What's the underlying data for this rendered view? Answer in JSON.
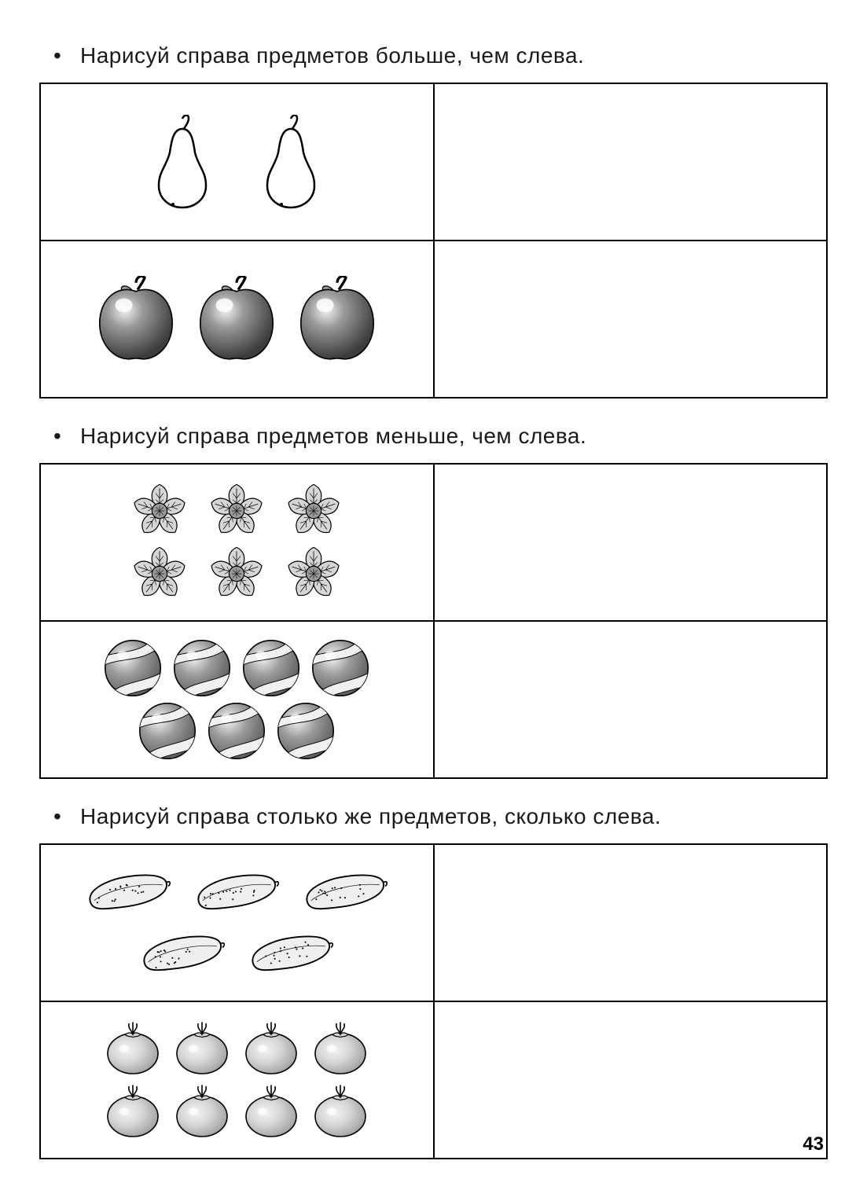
{
  "page_number": "43",
  "stroke_color": "#000000",
  "bg_color": "#ffffff",
  "sections": [
    {
      "instruction": "Нарисуй справа предметов больше, чем слева.",
      "rows": [
        {
          "icon": "pear",
          "count": 2,
          "row_layout": [
            2
          ],
          "cell_class": "tall",
          "size": 120
        },
        {
          "icon": "apple",
          "count": 3,
          "row_layout": [
            3
          ],
          "cell_class": "tall",
          "size": 110
        }
      ]
    },
    {
      "instruction": "Нарисуй справа предметов меньше, чем слева.",
      "rows": [
        {
          "icon": "flower",
          "count": 6,
          "row_layout": [
            3,
            3
          ],
          "cell_class": "tall",
          "size": 80
        },
        {
          "icon": "ball",
          "count": 7,
          "row_layout": [
            4,
            3
          ],
          "cell_class": "tall",
          "size": 80
        }
      ]
    },
    {
      "instruction": "Нарисуй справа столько же предметов, сколько слева.",
      "rows": [
        {
          "icon": "cucumber",
          "count": 5,
          "row_layout": [
            3,
            2
          ],
          "cell_class": "tall",
          "size": 120
        },
        {
          "icon": "tomato",
          "count": 8,
          "row_layout": [
            4,
            4
          ],
          "cell_class": "tall",
          "size": 80
        }
      ]
    }
  ],
  "gray": {
    "light": "#d6d6d6",
    "mid": "#9a9a9a",
    "dark": "#5a5a5a",
    "darker": "#3c3c3c"
  }
}
